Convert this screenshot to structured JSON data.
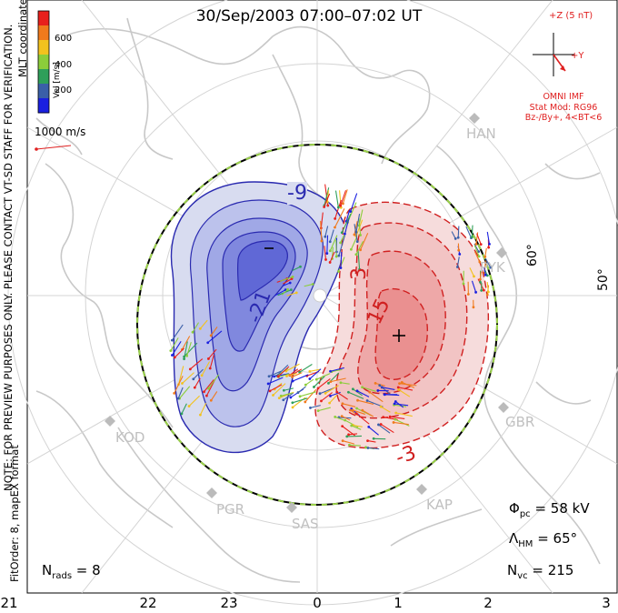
{
  "title": "30/Sep/2003 07:00–07:02 UT",
  "side_notes": {
    "coords": "MLT coordinates",
    "note": "NOTE: FOR PREVIEW PURPOSES ONLY. PLEASE CONTACT VT-SD STAFF FOR VERIFICATION.",
    "fitorder": "FitOrder: 8, mapEX format"
  },
  "colorbar": {
    "label": "Vel [m/s]",
    "ticks": [
      "600",
      "400",
      "200"
    ],
    "colors": [
      "#e8201c",
      "#f07a1c",
      "#f2c21e",
      "#8ccd3a",
      "#2e9f5a",
      "#3a5fa8",
      "#1a20e0"
    ]
  },
  "vector_scale": {
    "label": "1000 m/s"
  },
  "imf": {
    "bz_label": "+Z (5 nT)",
    "by_label": "+Y",
    "source": "OMNI IMF",
    "model": "Stat Mod: RG96",
    "condition": "Bz-/By+, 4<BT<6"
  },
  "lat_labels": [
    "60°",
    "50°"
  ],
  "stations": [
    "HAN",
    "PYK",
    "GBR",
    "KAP",
    "SAS",
    "PGR",
    "KOD"
  ],
  "contour_labels": [
    "-9",
    "-21",
    "3",
    "15",
    "-3"
  ],
  "stats": {
    "phi_pc": "58 kV",
    "lambda_hm": "65°",
    "n_vc": "215",
    "n_rads": "8"
  },
  "mlt_axis": [
    "21",
    "22",
    "23",
    "0",
    "1",
    "2",
    "3"
  ],
  "colors": {
    "negative_cell": "#3434d8",
    "positive_cell": "#d83434",
    "boundary": "#9bd24a",
    "coastline": "#c8c8c8"
  }
}
